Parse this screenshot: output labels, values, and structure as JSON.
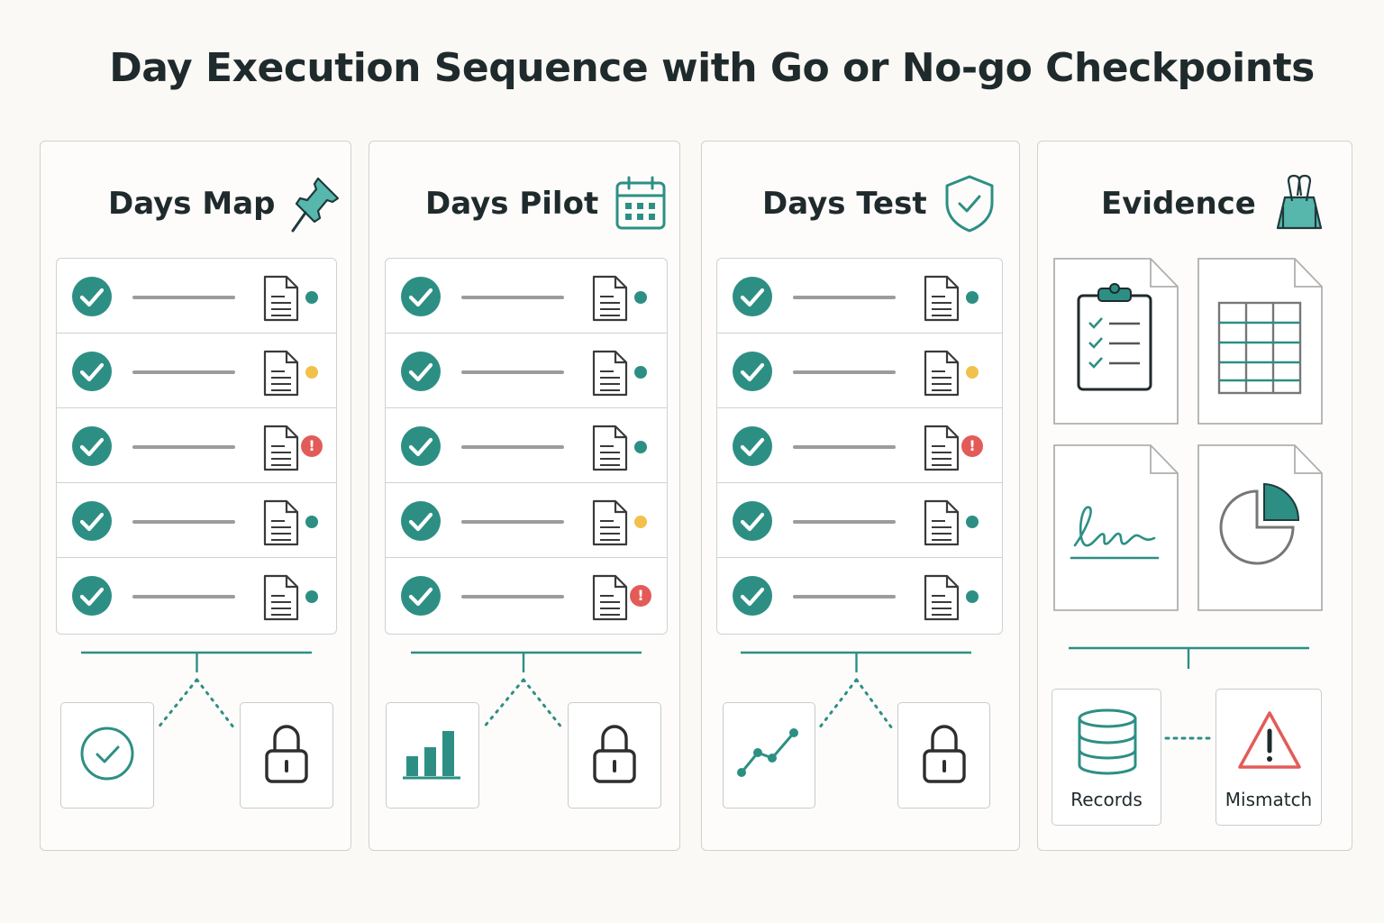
{
  "title": "Day Execution Sequence with Go or No-go Checkpoints",
  "colors": {
    "accent": "#2d8f84",
    "warning": "#f2c14c",
    "error": "#e35b58",
    "ink": "#1f2a2c"
  },
  "columns": [
    {
      "title": "Days Map",
      "icon": "pushpin-icon",
      "rows": [
        "ok",
        "warn",
        "err",
        "ok",
        "ok"
      ],
      "gates": [
        "check-circle-icon",
        "lock-icon"
      ]
    },
    {
      "title": "Days Pilot",
      "icon": "calendar-icon",
      "rows": [
        "ok",
        "ok",
        "ok",
        "warn",
        "err"
      ],
      "gates": [
        "bar-chart-icon",
        "lock-icon"
      ]
    },
    {
      "title": "Days Test",
      "icon": "shield-check-icon",
      "rows": [
        "ok",
        "warn",
        "err",
        "ok",
        "ok"
      ],
      "gates": [
        "line-chart-icon",
        "lock-icon"
      ]
    }
  ],
  "evidence": {
    "title": "Evidence",
    "icon": "binder-clip-icon",
    "documents": [
      "clipboard-checklist-icon",
      "spreadsheet-icon",
      "signature-icon",
      "pie-chart-icon"
    ],
    "records_label": "Records",
    "mismatch_label": "Mismatch"
  },
  "error_mark": "!"
}
